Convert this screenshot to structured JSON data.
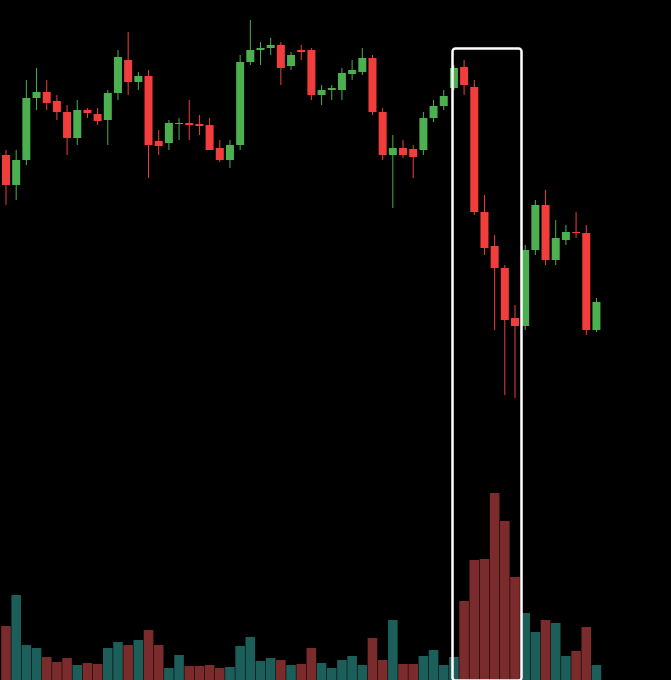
{
  "chart_data": {
    "type": "candlestick",
    "open": [
      525,
      495,
      520,
      582,
      588,
      579,
      568,
      542,
      570,
      566,
      560,
      587,
      620,
      598,
      604,
      539,
      537,
      556,
      557,
      556,
      555,
      532,
      520,
      535,
      618,
      630,
      632,
      635,
      614,
      630,
      630,
      585,
      590,
      590,
      606,
      608,
      622,
      568,
      525,
      532,
      531,
      530,
      562,
      574,
      592,
      613,
      593,
      468,
      434,
      412,
      362,
      354,
      430,
      475,
      420,
      440,
      448,
      447,
      350
    ],
    "close": [
      495,
      520,
      582,
      588,
      577,
      568,
      542,
      570,
      567,
      559,
      587,
      623,
      598,
      604,
      535,
      534,
      557,
      557,
      555,
      554,
      530,
      520,
      535,
      618,
      630,
      632,
      635,
      612,
      625,
      628,
      585,
      590,
      592,
      607,
      610,
      622,
      568,
      525,
      532,
      525,
      523,
      562,
      574,
      584,
      612,
      595,
      468,
      432,
      412,
      360,
      354,
      430,
      475,
      420,
      442,
      448,
      447,
      350,
      378
    ],
    "high": [
      530,
      530,
      600,
      612,
      600,
      585,
      575,
      580,
      572,
      572,
      590,
      630,
      648,
      608,
      610,
      550,
      560,
      562,
      580,
      565,
      562,
      540,
      540,
      625,
      660,
      638,
      642,
      638,
      628,
      635,
      632,
      595,
      595,
      612,
      620,
      632,
      625,
      572,
      545,
      540,
      535,
      568,
      580,
      590,
      615,
      620,
      600,
      485,
      445,
      415,
      375,
      435,
      480,
      490,
      460,
      455,
      468,
      455,
      382
    ],
    "low": [
      475,
      480,
      515,
      570,
      570,
      560,
      525,
      535,
      562,
      555,
      535,
      580,
      585,
      590,
      502,
      525,
      530,
      540,
      540,
      545,
      530,
      518,
      512,
      530,
      615,
      615,
      625,
      595,
      610,
      620,
      580,
      575,
      580,
      580,
      600,
      605,
      565,
      520,
      472,
      522,
      502,
      525,
      558,
      570,
      590,
      585,
      465,
      425,
      350,
      285,
      282,
      350,
      425,
      415,
      415,
      435,
      442,
      345,
      348
    ],
    "volume": [
      51,
      82,
      32,
      29,
      20,
      15,
      19,
      12,
      14,
      13,
      29,
      35,
      32,
      37,
      47,
      32,
      9,
      22,
      11,
      11,
      12,
      9,
      10,
      31,
      40,
      16,
      19,
      17,
      12,
      13,
      29,
      14,
      9,
      17,
      21,
      12,
      39,
      17,
      57,
      13,
      13,
      21,
      27,
      12,
      20,
      76,
      117,
      118,
      184,
      156,
      100,
      64,
      45,
      57,
      54,
      21,
      26,
      50,
      12
    ],
    "volume_ylim": [
      0,
      677
    ],
    "ylim": [
      0,
      680
    ],
    "up_color": "#4caf50",
    "down_color": "#f23d3d",
    "volume_up_color": "#1b5e5a",
    "volume_down_color": "#7b2b2b"
  }
}
